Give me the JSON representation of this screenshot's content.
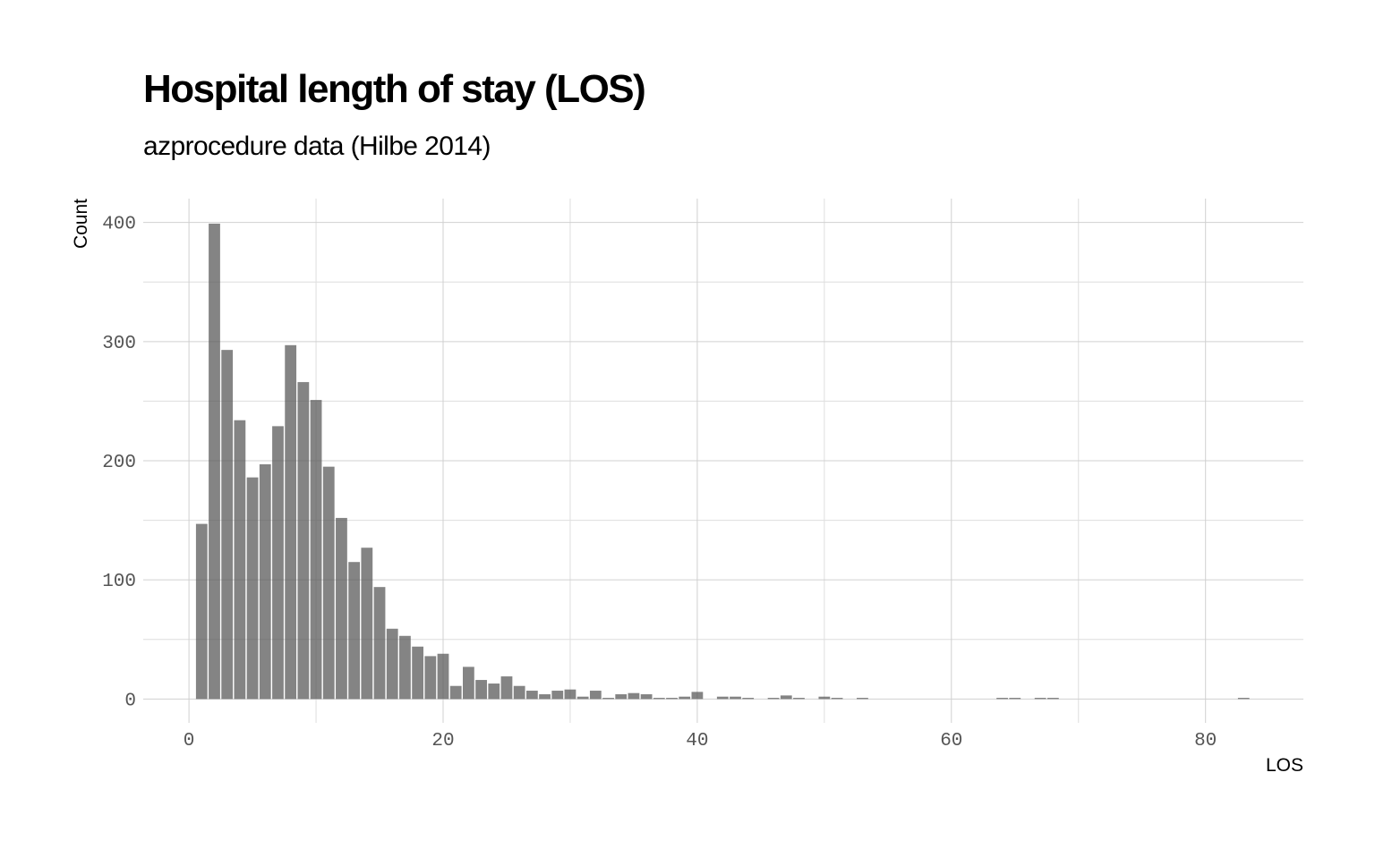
{
  "chart_data": {
    "type": "bar",
    "title": "Hospital length of stay (LOS)",
    "subtitle": "azprocedure data (Hilbe 2014)",
    "xlabel": "LOS",
    "ylabel": "Count",
    "xlim": [
      -3.6,
      87.7
    ],
    "ylim": [
      -20,
      420
    ],
    "x_ticks": [
      0,
      20,
      40,
      60,
      80
    ],
    "y_ticks": [
      0,
      100,
      200,
      300,
      400
    ],
    "grid": true,
    "bar_color": "#555555",
    "x": [
      1,
      2,
      3,
      4,
      5,
      6,
      7,
      8,
      9,
      10,
      11,
      12,
      13,
      14,
      15,
      16,
      17,
      18,
      19,
      20,
      21,
      22,
      23,
      24,
      25,
      26,
      27,
      28,
      29,
      30,
      31,
      32,
      33,
      34,
      35,
      36,
      37,
      38,
      39,
      40,
      42,
      43,
      44,
      46,
      47,
      48,
      50,
      51,
      53,
      64,
      65,
      67,
      68,
      83
    ],
    "values": [
      147,
      399,
      293,
      234,
      186,
      197,
      229,
      297,
      266,
      251,
      195,
      152,
      115,
      127,
      94,
      59,
      53,
      44,
      36,
      38,
      11,
      27,
      16,
      13,
      19,
      11,
      7,
      4,
      7,
      8,
      2,
      7,
      1,
      4,
      5,
      4,
      1,
      1,
      2,
      6,
      2,
      2,
      1,
      1,
      3,
      1,
      2,
      1,
      1,
      1,
      1,
      1,
      1,
      1
    ]
  }
}
